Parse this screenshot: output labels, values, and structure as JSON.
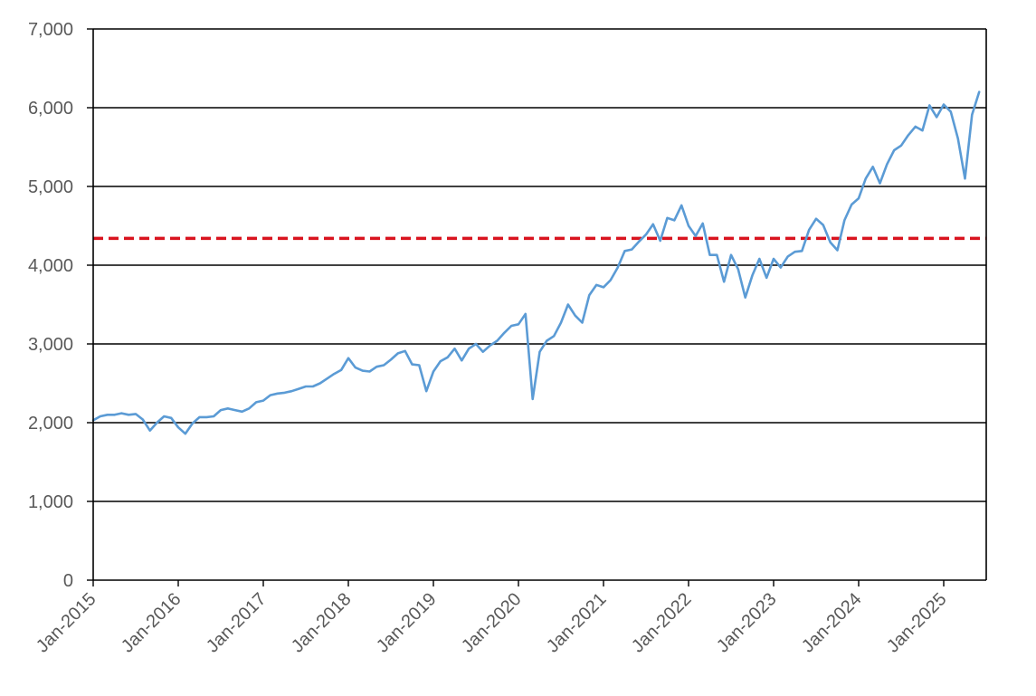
{
  "chart_data": {
    "type": "line",
    "title": "",
    "xlabel": "",
    "ylabel": "",
    "ylim": [
      0,
      7000
    ],
    "xlim": [
      "2015-01",
      "2025-07"
    ],
    "y_ticks": [
      {
        "value": 0,
        "label": "0"
      },
      {
        "value": 1000,
        "label": "1,000"
      },
      {
        "value": 2000,
        "label": "2,000"
      },
      {
        "value": 3000,
        "label": "3,000"
      },
      {
        "value": 4000,
        "label": "4,000"
      },
      {
        "value": 5000,
        "label": "5,000"
      },
      {
        "value": 6000,
        "label": "6,000"
      },
      {
        "value": 7000,
        "label": "7,000"
      }
    ],
    "x_ticks": [
      {
        "value": "2015-01",
        "label": "Jan-2015"
      },
      {
        "value": "2016-01",
        "label": "Jan-2016"
      },
      {
        "value": "2017-01",
        "label": "Jan-2017"
      },
      {
        "value": "2018-01",
        "label": "Jan-2018"
      },
      {
        "value": "2019-01",
        "label": "Jan-2019"
      },
      {
        "value": "2020-01",
        "label": "Jan-2020"
      },
      {
        "value": "2021-01",
        "label": "Jan-2021"
      },
      {
        "value": "2022-01",
        "label": "Jan-2022"
      },
      {
        "value": "2023-01",
        "label": "Jan-2023"
      },
      {
        "value": "2024-01",
        "label": "Jan-2024"
      },
      {
        "value": "2025-01",
        "label": "Jan-2025"
      }
    ],
    "grid": "horizontal",
    "legend": "none",
    "series": [
      {
        "color": "#5b9bd5",
        "points": [
          [
            "2015-01",
            2030
          ],
          [
            "2015-02",
            2080
          ],
          [
            "2015-03",
            2100
          ],
          [
            "2015-04",
            2100
          ],
          [
            "2015-05",
            2120
          ],
          [
            "2015-06",
            2100
          ],
          [
            "2015-07",
            2110
          ],
          [
            "2015-08",
            2040
          ],
          [
            "2015-09",
            1900
          ],
          [
            "2015-10",
            2000
          ],
          [
            "2015-11",
            2080
          ],
          [
            "2015-12",
            2060
          ],
          [
            "2016-01",
            1940
          ],
          [
            "2016-02",
            1860
          ],
          [
            "2016-03",
            1990
          ],
          [
            "2016-04",
            2070
          ],
          [
            "2016-05",
            2070
          ],
          [
            "2016-06",
            2080
          ],
          [
            "2016-07",
            2160
          ],
          [
            "2016-08",
            2180
          ],
          [
            "2016-09",
            2160
          ],
          [
            "2016-10",
            2140
          ],
          [
            "2016-11",
            2180
          ],
          [
            "2016-12",
            2260
          ],
          [
            "2017-01",
            2280
          ],
          [
            "2017-02",
            2350
          ],
          [
            "2017-03",
            2370
          ],
          [
            "2017-04",
            2380
          ],
          [
            "2017-05",
            2400
          ],
          [
            "2017-06",
            2430
          ],
          [
            "2017-07",
            2460
          ],
          [
            "2017-08",
            2460
          ],
          [
            "2017-09",
            2500
          ],
          [
            "2017-10",
            2560
          ],
          [
            "2017-11",
            2620
          ],
          [
            "2017-12",
            2670
          ],
          [
            "2018-01",
            2820
          ],
          [
            "2018-02",
            2700
          ],
          [
            "2018-03",
            2660
          ],
          [
            "2018-04",
            2650
          ],
          [
            "2018-05",
            2710
          ],
          [
            "2018-06",
            2730
          ],
          [
            "2018-07",
            2800
          ],
          [
            "2018-08",
            2880
          ],
          [
            "2018-09",
            2910
          ],
          [
            "2018-10",
            2740
          ],
          [
            "2018-11",
            2730
          ],
          [
            "2018-12",
            2400
          ],
          [
            "2019-01",
            2650
          ],
          [
            "2019-02",
            2780
          ],
          [
            "2019-03",
            2830
          ],
          [
            "2019-04",
            2940
          ],
          [
            "2019-05",
            2790
          ],
          [
            "2019-06",
            2940
          ],
          [
            "2019-07",
            3000
          ],
          [
            "2019-08",
            2900
          ],
          [
            "2019-09",
            2980
          ],
          [
            "2019-10",
            3040
          ],
          [
            "2019-11",
            3140
          ],
          [
            "2019-12",
            3230
          ],
          [
            "2020-01",
            3250
          ],
          [
            "2020-02",
            3380
          ],
          [
            "2020-03",
            2300
          ],
          [
            "2020-04",
            2900
          ],
          [
            "2020-05",
            3040
          ],
          [
            "2020-06",
            3100
          ],
          [
            "2020-07",
            3270
          ],
          [
            "2020-08",
            3500
          ],
          [
            "2020-09",
            3360
          ],
          [
            "2020-10",
            3270
          ],
          [
            "2020-11",
            3620
          ],
          [
            "2020-12",
            3750
          ],
          [
            "2021-01",
            3720
          ],
          [
            "2021-02",
            3810
          ],
          [
            "2021-03",
            3970
          ],
          [
            "2021-04",
            4180
          ],
          [
            "2021-05",
            4200
          ],
          [
            "2021-06",
            4300
          ],
          [
            "2021-07",
            4390
          ],
          [
            "2021-08",
            4520
          ],
          [
            "2021-09",
            4310
          ],
          [
            "2021-10",
            4600
          ],
          [
            "2021-11",
            4570
          ],
          [
            "2021-12",
            4760
          ],
          [
            "2022-01",
            4500
          ],
          [
            "2022-02",
            4370
          ],
          [
            "2022-03",
            4530
          ],
          [
            "2022-04",
            4130
          ],
          [
            "2022-05",
            4130
          ],
          [
            "2022-06",
            3790
          ],
          [
            "2022-07",
            4130
          ],
          [
            "2022-08",
            3950
          ],
          [
            "2022-09",
            3590
          ],
          [
            "2022-10",
            3870
          ],
          [
            "2022-11",
            4080
          ],
          [
            "2022-12",
            3840
          ],
          [
            "2023-01",
            4080
          ],
          [
            "2023-02",
            3970
          ],
          [
            "2023-03",
            4110
          ],
          [
            "2023-04",
            4170
          ],
          [
            "2023-05",
            4180
          ],
          [
            "2023-06",
            4450
          ],
          [
            "2023-07",
            4590
          ],
          [
            "2023-08",
            4510
          ],
          [
            "2023-09",
            4290
          ],
          [
            "2023-10",
            4190
          ],
          [
            "2023-11",
            4570
          ],
          [
            "2023-12",
            4770
          ],
          [
            "2024-01",
            4850
          ],
          [
            "2024-02",
            5100
          ],
          [
            "2024-03",
            5250
          ],
          [
            "2024-04",
            5040
          ],
          [
            "2024-05",
            5280
          ],
          [
            "2024-06",
            5460
          ],
          [
            "2024-07",
            5520
          ],
          [
            "2024-08",
            5650
          ],
          [
            "2024-09",
            5760
          ],
          [
            "2024-10",
            5710
          ],
          [
            "2024-11",
            6030
          ],
          [
            "2024-12",
            5880
          ],
          [
            "2025-01",
            6040
          ],
          [
            "2025-02",
            5950
          ],
          [
            "2025-03",
            5610
          ],
          [
            "2025-04",
            5100
          ],
          [
            "2025-05",
            5910
          ],
          [
            "2025-06",
            6200
          ]
        ]
      }
    ],
    "reference_lines": [
      {
        "y": 4340,
        "color": "#d9141f",
        "style": "dashed"
      }
    ]
  }
}
